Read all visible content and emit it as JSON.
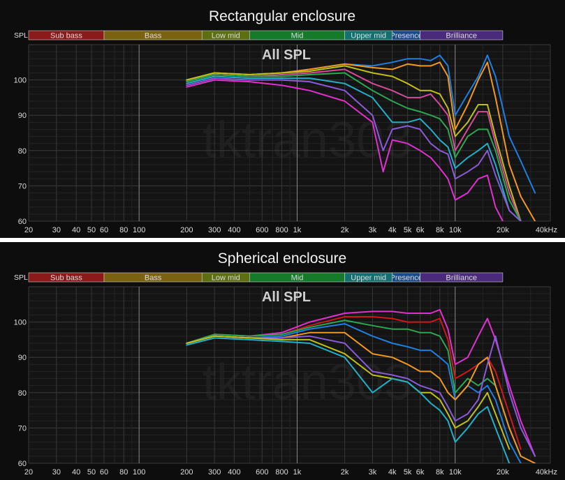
{
  "watermark": "tktran303",
  "chart_data": [
    {
      "type": "line",
      "title": "Rectangular enclosure",
      "subtitle": "All SPL",
      "ylabel": "SPL",
      "x_scale": "log",
      "xlim": [
        20,
        40000
      ],
      "ylim": [
        60,
        110
      ],
      "grid": true,
      "x_ticks": [
        "20",
        "30",
        "40",
        "50",
        "60",
        "80",
        "100",
        "200",
        "300",
        "400",
        "600",
        "800",
        "1k",
        "2k",
        "3k",
        "4k",
        "5k",
        "6k",
        "8k",
        "10k",
        "20k",
        "40kHz"
      ],
      "y_ticks": [
        "60",
        "70",
        "80",
        "90",
        "100"
      ],
      "bands": [
        {
          "label": "Sub bass",
          "color": "#8b1a1a"
        },
        {
          "label": "Bass",
          "color": "#7a6210"
        },
        {
          "label": "Low mid",
          "color": "#5e6e12"
        },
        {
          "label": "Mid",
          "color": "#157a2a"
        },
        {
          "label": "Upper mid",
          "color": "#137070"
        },
        {
          "label": "Presence",
          "color": "#1a4a8a"
        },
        {
          "label": "Brilliance",
          "color": "#4a2a7a"
        }
      ],
      "series": [
        {
          "color": "#1f7fe0",
          "x": [
            200,
            300,
            500,
            800,
            1200,
            2000,
            3000,
            4000,
            5000,
            6000,
            7000,
            8000,
            9000,
            10000,
            12000,
            14000,
            16000,
            18000,
            22000,
            26000,
            32000
          ],
          "y": [
            100,
            102,
            101.5,
            102,
            103,
            104.5,
            104,
            105,
            106,
            106,
            105.5,
            107,
            104,
            90,
            96,
            101,
            107,
            101,
            84,
            77,
            68
          ]
        },
        {
          "color": "#f09820",
          "x": [
            200,
            300,
            500,
            800,
            1200,
            2000,
            3000,
            4000,
            5000,
            6000,
            7000,
            8000,
            9000,
            10000,
            12000,
            14000,
            16000,
            18000,
            22000,
            26000,
            32000
          ],
          "y": [
            100,
            102,
            101.5,
            102,
            103,
            104.5,
            103.5,
            103,
            104.5,
            104,
            104,
            105,
            101,
            86,
            93,
            100,
            105,
            95,
            76,
            67,
            60
          ]
        },
        {
          "color": "#c0c018",
          "x": [
            200,
            300,
            500,
            800,
            1200,
            2000,
            3000,
            4000,
            5000,
            6000,
            7000,
            8000,
            9000,
            10000,
            12000,
            14000,
            16000,
            18000,
            22000,
            26000
          ],
          "y": [
            100,
            102,
            101.5,
            102,
            102.5,
            104,
            102,
            101,
            99,
            97,
            97,
            96,
            92,
            84,
            88,
            93,
            93,
            84,
            70,
            60
          ]
        },
        {
          "color": "#d74a98",
          "x": [
            200,
            300,
            500,
            800,
            1200,
            2000,
            3000,
            4000,
            5000,
            6000,
            7000,
            8000,
            9000,
            10000,
            12000,
            14000,
            16000,
            18000,
            22000,
            26000
          ],
          "y": [
            99.5,
            101.5,
            101,
            101.5,
            102,
            103,
            99,
            97,
            95,
            95,
            96,
            93,
            90,
            80,
            86,
            91,
            91,
            82,
            68,
            60
          ]
        },
        {
          "color": "#2aa850",
          "x": [
            200,
            300,
            500,
            800,
            1200,
            2000,
            3000,
            4000,
            5000,
            6000,
            7000,
            8000,
            9000,
            10000,
            12000,
            14000,
            16000,
            18000,
            22000,
            26000
          ],
          "y": [
            99.5,
            101.5,
            101,
            101,
            101.5,
            102,
            97,
            94,
            92,
            91,
            90,
            89,
            86,
            78,
            84,
            86,
            86,
            80,
            66,
            60
          ]
        },
        {
          "color": "#20b0c8",
          "x": [
            200,
            300,
            500,
            800,
            1200,
            2000,
            3000,
            4000,
            5000,
            6000,
            7000,
            8000,
            9000,
            10000,
            12000,
            14000,
            16000,
            18000,
            22000,
            26000
          ],
          "y": [
            99,
            101,
            100.5,
            100.5,
            100.5,
            99,
            95,
            88,
            88,
            89,
            86,
            83,
            81,
            75,
            78,
            80,
            82,
            76,
            63,
            60
          ]
        },
        {
          "color": "#8a5ad8",
          "x": [
            200,
            300,
            500,
            800,
            1200,
            2000,
            3000,
            3500,
            4000,
            5000,
            6000,
            7000,
            8000,
            9000,
            10000,
            12000,
            14000,
            16000,
            18000,
            22000,
            26000
          ],
          "y": [
            98.5,
            100.5,
            100,
            100,
            99.5,
            97,
            90,
            80,
            86,
            87,
            86,
            82,
            80,
            79,
            72,
            74,
            76,
            80,
            73,
            63,
            60
          ]
        },
        {
          "color": "#e030d0",
          "x": [
            200,
            300,
            500,
            800,
            1200,
            2000,
            3000,
            3500,
            4000,
            5000,
            6000,
            7000,
            8000,
            9000,
            10000,
            12000,
            14000,
            16000,
            18000,
            20000
          ],
          "y": [
            98,
            100,
            99.5,
            98.5,
            97,
            94,
            88,
            74,
            83,
            82,
            80,
            78,
            75,
            72,
            66,
            68,
            72,
            73,
            64,
            60
          ]
        }
      ]
    },
    {
      "type": "line",
      "title": "Spherical enclosure",
      "subtitle": "All SPL",
      "ylabel": "SPL",
      "x_scale": "log",
      "xlim": [
        20,
        40000
      ],
      "ylim": [
        60,
        110
      ],
      "grid": true,
      "x_ticks": [
        "20",
        "30",
        "40",
        "50",
        "60",
        "80",
        "100",
        "200",
        "300",
        "400",
        "600",
        "800",
        "1k",
        "2k",
        "3k",
        "4k",
        "5k",
        "6k",
        "8k",
        "10k",
        "20k",
        "40kHz"
      ],
      "y_ticks": [
        "60",
        "70",
        "80",
        "90",
        "100"
      ],
      "bands": [
        {
          "label": "Sub bass",
          "color": "#8b1a1a"
        },
        {
          "label": "Bass",
          "color": "#7a6210"
        },
        {
          "label": "Low mid",
          "color": "#5e6e12"
        },
        {
          "label": "Mid",
          "color": "#157a2a"
        },
        {
          "label": "Upper mid",
          "color": "#137070"
        },
        {
          "label": "Presence",
          "color": "#1a4a8a"
        },
        {
          "label": "Brilliance",
          "color": "#4a2a7a"
        }
      ],
      "series": [
        {
          "color": "#e030d0",
          "x": [
            200,
            300,
            500,
            800,
            1200,
            2000,
            3000,
            4000,
            5000,
            6000,
            7000,
            8000,
            9000,
            10000,
            12000,
            14000,
            16000,
            18000,
            22000,
            26000,
            32000
          ],
          "y": [
            94,
            96.5,
            96,
            97,
            100,
            102.5,
            103,
            103,
            102.5,
            102.5,
            102.5,
            103.5,
            98,
            88,
            90,
            96,
            101,
            95,
            82,
            72,
            62
          ]
        },
        {
          "color": "#d01818",
          "x": [
            200,
            300,
            500,
            800,
            1200,
            2000,
            3000,
            4000,
            5000,
            6000,
            7000,
            8000,
            9000,
            10000,
            12000,
            14000,
            16000,
            18000,
            22000,
            26000
          ],
          "y": [
            94,
            96.5,
            96,
            96.5,
            99,
            101.5,
            101.5,
            101,
            100,
            100,
            100,
            101,
            95,
            84,
            86,
            88,
            90,
            86,
            74,
            64
          ]
        },
        {
          "color": "#2aa850",
          "x": [
            200,
            300,
            500,
            800,
            1200,
            2000,
            3000,
            4000,
            5000,
            6000,
            7000,
            8000,
            9000,
            10000,
            12000,
            14000,
            16000,
            18000,
            22000,
            26000
          ],
          "y": [
            94,
            96.5,
            96,
            96.5,
            98.5,
            100.5,
            99,
            98,
            98,
            97,
            97,
            96,
            92,
            80,
            84,
            82,
            84,
            82,
            70,
            62
          ]
        },
        {
          "color": "#1f7fe0",
          "x": [
            200,
            300,
            500,
            800,
            1200,
            2000,
            3000,
            4000,
            5000,
            6000,
            7000,
            8000,
            9000,
            10000,
            12000,
            14000,
            16000,
            18000,
            22000,
            26000
          ],
          "y": [
            94,
            96,
            95.5,
            96,
            98,
            99.5,
            96,
            94,
            93,
            92,
            92,
            90,
            88,
            78,
            82,
            80,
            82,
            78,
            66,
            60
          ]
        },
        {
          "color": "#f09820",
          "x": [
            200,
            300,
            500,
            800,
            1200,
            2000,
            3000,
            4000,
            5000,
            6000,
            7000,
            8000,
            9000,
            10000,
            12000,
            14000,
            16000,
            18000,
            22000,
            26000,
            32000
          ],
          "y": [
            94,
            96,
            95.5,
            95.5,
            97,
            97,
            91,
            90,
            88,
            86,
            86,
            84,
            80,
            78,
            82,
            88,
            90,
            82,
            70,
            62,
            60
          ]
        },
        {
          "color": "#8a5ad8",
          "x": [
            200,
            300,
            500,
            800,
            1200,
            2000,
            3000,
            4000,
            5000,
            6000,
            7000,
            8000,
            9000,
            10000,
            12000,
            14000,
            16000,
            18000,
            22000,
            26000,
            32000
          ],
          "y": [
            94,
            96,
            95.5,
            95.5,
            96,
            94,
            86,
            85,
            84,
            82,
            81,
            80,
            76,
            72,
            74,
            78,
            88,
            96,
            80,
            70,
            62
          ]
        },
        {
          "color": "#c0c018",
          "x": [
            200,
            300,
            500,
            800,
            1200,
            2000,
            3000,
            4000,
            5000,
            6000,
            7000,
            8000,
            9000,
            10000,
            12000,
            14000,
            16000,
            18000,
            22000
          ],
          "y": [
            94,
            96,
            95.5,
            95,
            95,
            91,
            85,
            84,
            83,
            80,
            80,
            78,
            74,
            70,
            72,
            76,
            80,
            74,
            64
          ]
        },
        {
          "color": "#20b0c8",
          "x": [
            200,
            300,
            500,
            800,
            1200,
            2000,
            3000,
            4000,
            5000,
            6000,
            7000,
            8000,
            9000,
            10000,
            12000,
            14000,
            16000,
            18000,
            22000
          ],
          "y": [
            93.5,
            95.5,
            95,
            94.5,
            94,
            90,
            80,
            84,
            83,
            80,
            77,
            75,
            72,
            66,
            70,
            74,
            76,
            70,
            60
          ]
        }
      ]
    }
  ]
}
